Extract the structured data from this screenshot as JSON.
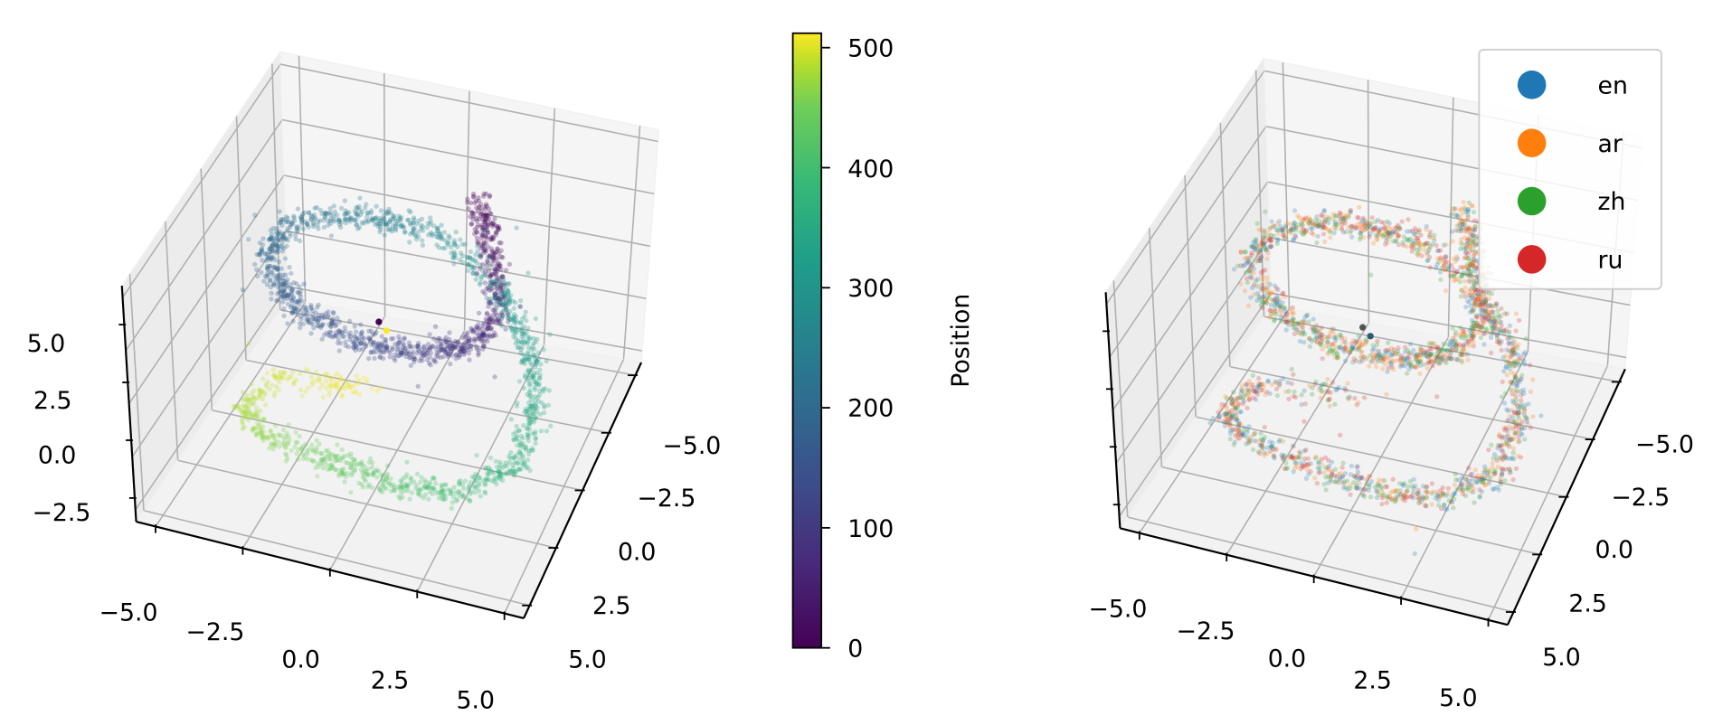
{
  "chart_data": [
    {
      "type": "scatter",
      "projection": "3d",
      "panel": "left",
      "color_by": "Position",
      "colormap": "viridis",
      "position_range": [
        0,
        512
      ],
      "xlim": [
        -5,
        5
      ],
      "ylim": [
        -5,
        5
      ],
      "zlim": [
        -3,
        7
      ],
      "x_ticks": [
        "−5.0",
        "−2.5",
        "0.0",
        "2.5",
        "5.0"
      ],
      "y_ticks": [
        "−5.0",
        "−2.5",
        "0.0",
        "2.5",
        "5.0"
      ],
      "z_ticks": [
        "5.0",
        "2.5",
        "0.0",
        "−2.5"
      ],
      "grid": true,
      "colorbar": {
        "label": "Position",
        "ticks": [
          "0",
          "100",
          "200",
          "300",
          "400",
          "500"
        ],
        "range": [
          0,
          512
        ]
      }
    },
    {
      "type": "scatter",
      "projection": "3d",
      "panel": "right",
      "color_by": "language",
      "xlim": [
        -5,
        5
      ],
      "ylim": [
        -5,
        5
      ],
      "x_ticks": [
        "−5.0",
        "−2.5",
        "0.0",
        "2.5",
        "5.0"
      ],
      "y_ticks": [
        "−5.0",
        "−2.5",
        "0.0",
        "2.5",
        "5.0"
      ],
      "grid": true,
      "legend": {
        "placement": "top-right",
        "entries": [
          {
            "label": "en",
            "color": "#1f77b4"
          },
          {
            "label": "ar",
            "color": "#ff7f0e"
          },
          {
            "label": "zh",
            "color": "#2ca02c"
          },
          {
            "label": "ru",
            "color": "#d62728"
          }
        ]
      }
    }
  ]
}
